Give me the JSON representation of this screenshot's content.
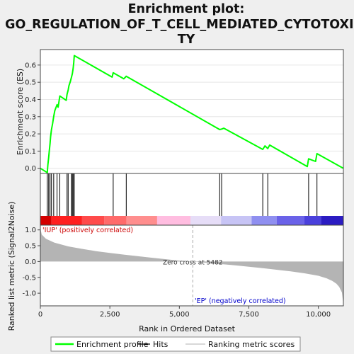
{
  "chart_data": {
    "type": "line",
    "title_lines": [
      "Enrichment plot:",
      "GO_REGULATION_OF_T_CELL_MEDIATED_CYTOTOXICI",
      "TY"
    ],
    "xlabel": "Rank in Ordered Dataset",
    "ylabel_top": "Enrichment score (ES)",
    "ylabel_bottom": "Ranked list metric (Signal2Noise)",
    "x_ticks": [
      "0",
      "2,500",
      "5,000",
      "7,500",
      "10,000"
    ],
    "x_tick_values": [
      0,
      2500,
      5000,
      7500,
      10000
    ],
    "es_y_ticks": [
      "0.0",
      "0.1",
      "0.2",
      "0.3",
      "0.4",
      "0.5",
      "0.6"
    ],
    "es_y_tick_values": [
      0,
      0.1,
      0.2,
      0.3,
      0.4,
      0.5,
      0.6
    ],
    "metric_y_ticks": [
      "1.0",
      "0.5",
      "0.0",
      "-0.5",
      "-1.0"
    ],
    "metric_y_tick_values": [
      1.0,
      0.5,
      0.0,
      -0.5,
      -1.0
    ],
    "xlim": [
      0,
      10900
    ],
    "es_ylim": [
      -0.03,
      0.69
    ],
    "metric_ylim": [
      -1.4,
      1.15
    ],
    "series": [
      {
        "name": "Enrichment profile",
        "color": "#00ff00",
        "x": [
          0,
          250,
          270,
          300,
          320,
          350,
          370,
          400,
          440,
          480,
          520,
          600,
          640,
          700,
          930,
          960,
          1000,
          1030,
          1080,
          1120,
          1150,
          1180,
          1200,
          1220,
          2580,
          2620,
          3000,
          3050,
          3090,
          6450,
          6520,
          6600,
          8000,
          8080,
          8180,
          8250,
          9600,
          9650,
          9900,
          9950,
          10900
        ],
        "y": [
          0.0,
          -0.025,
          0.02,
          0.065,
          0.1,
          0.145,
          0.185,
          0.225,
          0.26,
          0.3,
          0.335,
          0.37,
          0.355,
          0.42,
          0.395,
          0.43,
          0.455,
          0.48,
          0.505,
          0.53,
          0.55,
          0.58,
          0.61,
          0.655,
          0.53,
          0.555,
          0.52,
          0.528,
          0.535,
          0.225,
          0.228,
          0.233,
          0.11,
          0.13,
          0.115,
          0.135,
          0.01,
          0.055,
          0.04,
          0.085,
          0.0
        ]
      }
    ],
    "hits": [
      250,
      300,
      350,
      400,
      480,
      600,
      700,
      960,
      1000,
      1120,
      1150,
      1180,
      1220,
      2620,
      3090,
      6450,
      6520,
      8000,
      8180,
      9650,
      9950
    ],
    "metric_curve": {
      "x": [
        0,
        50,
        200,
        500,
        1000,
        1500,
        2000,
        2500,
        3000,
        4000,
        5000,
        5482,
        6000,
        7000,
        8000,
        9000,
        9500,
        10000,
        10300,
        10500,
        10650,
        10750,
        10850,
        10900
      ],
      "y": [
        1.05,
        0.85,
        0.72,
        0.6,
        0.48,
        0.4,
        0.33,
        0.27,
        0.22,
        0.12,
        0.03,
        0.0,
        -0.04,
        -0.12,
        -0.21,
        -0.31,
        -0.37,
        -0.45,
        -0.53,
        -0.61,
        -0.7,
        -0.8,
        -0.98,
        -1.35
      ]
    },
    "zero_cross_label": "Zero cross at 5482",
    "zero_cross_x": 5482,
    "pos_label": "'IUP' (positively correlated)",
    "neg_label": "'EP' (negatively correlated)",
    "heat_segments": [
      {
        "from": 0,
        "to": 400,
        "color": "#d40000"
      },
      {
        "from": 400,
        "to": 1500,
        "color": "#ff2020"
      },
      {
        "from": 1500,
        "to": 2300,
        "color": "#ff4a4a"
      },
      {
        "from": 2300,
        "to": 3100,
        "color": "#ff6a6a"
      },
      {
        "from": 3100,
        "to": 4200,
        "color": "#ff8e8e"
      },
      {
        "from": 4200,
        "to": 5400,
        "color": "#ffbde0"
      },
      {
        "from": 5400,
        "to": 6500,
        "color": "#e6ddf7"
      },
      {
        "from": 6500,
        "to": 7600,
        "color": "#c7c4f5"
      },
      {
        "from": 7600,
        "to": 8500,
        "color": "#8f8ff0"
      },
      {
        "from": 8500,
        "to": 9500,
        "color": "#6a62e8"
      },
      {
        "from": 9500,
        "to": 10100,
        "color": "#4a40dc"
      },
      {
        "from": 10100,
        "to": 10900,
        "color": "#2b1cc2"
      }
    ],
    "legend": [
      {
        "label": "Enrichment profile",
        "kind": "line",
        "color": "#00ff00"
      },
      {
        "label": "Hits",
        "kind": "line",
        "color": "#000000"
      },
      {
        "label": "Ranking metric scores",
        "kind": "line",
        "color": "#c0c0c0"
      }
    ],
    "colors": {
      "es_line": "#00ff00",
      "hit": "#000000",
      "metric_fill": "#b4b4b4",
      "pos_text": "#cc0000",
      "neg_text": "#0000cc",
      "zero_line": "#aaaaaa"
    }
  }
}
